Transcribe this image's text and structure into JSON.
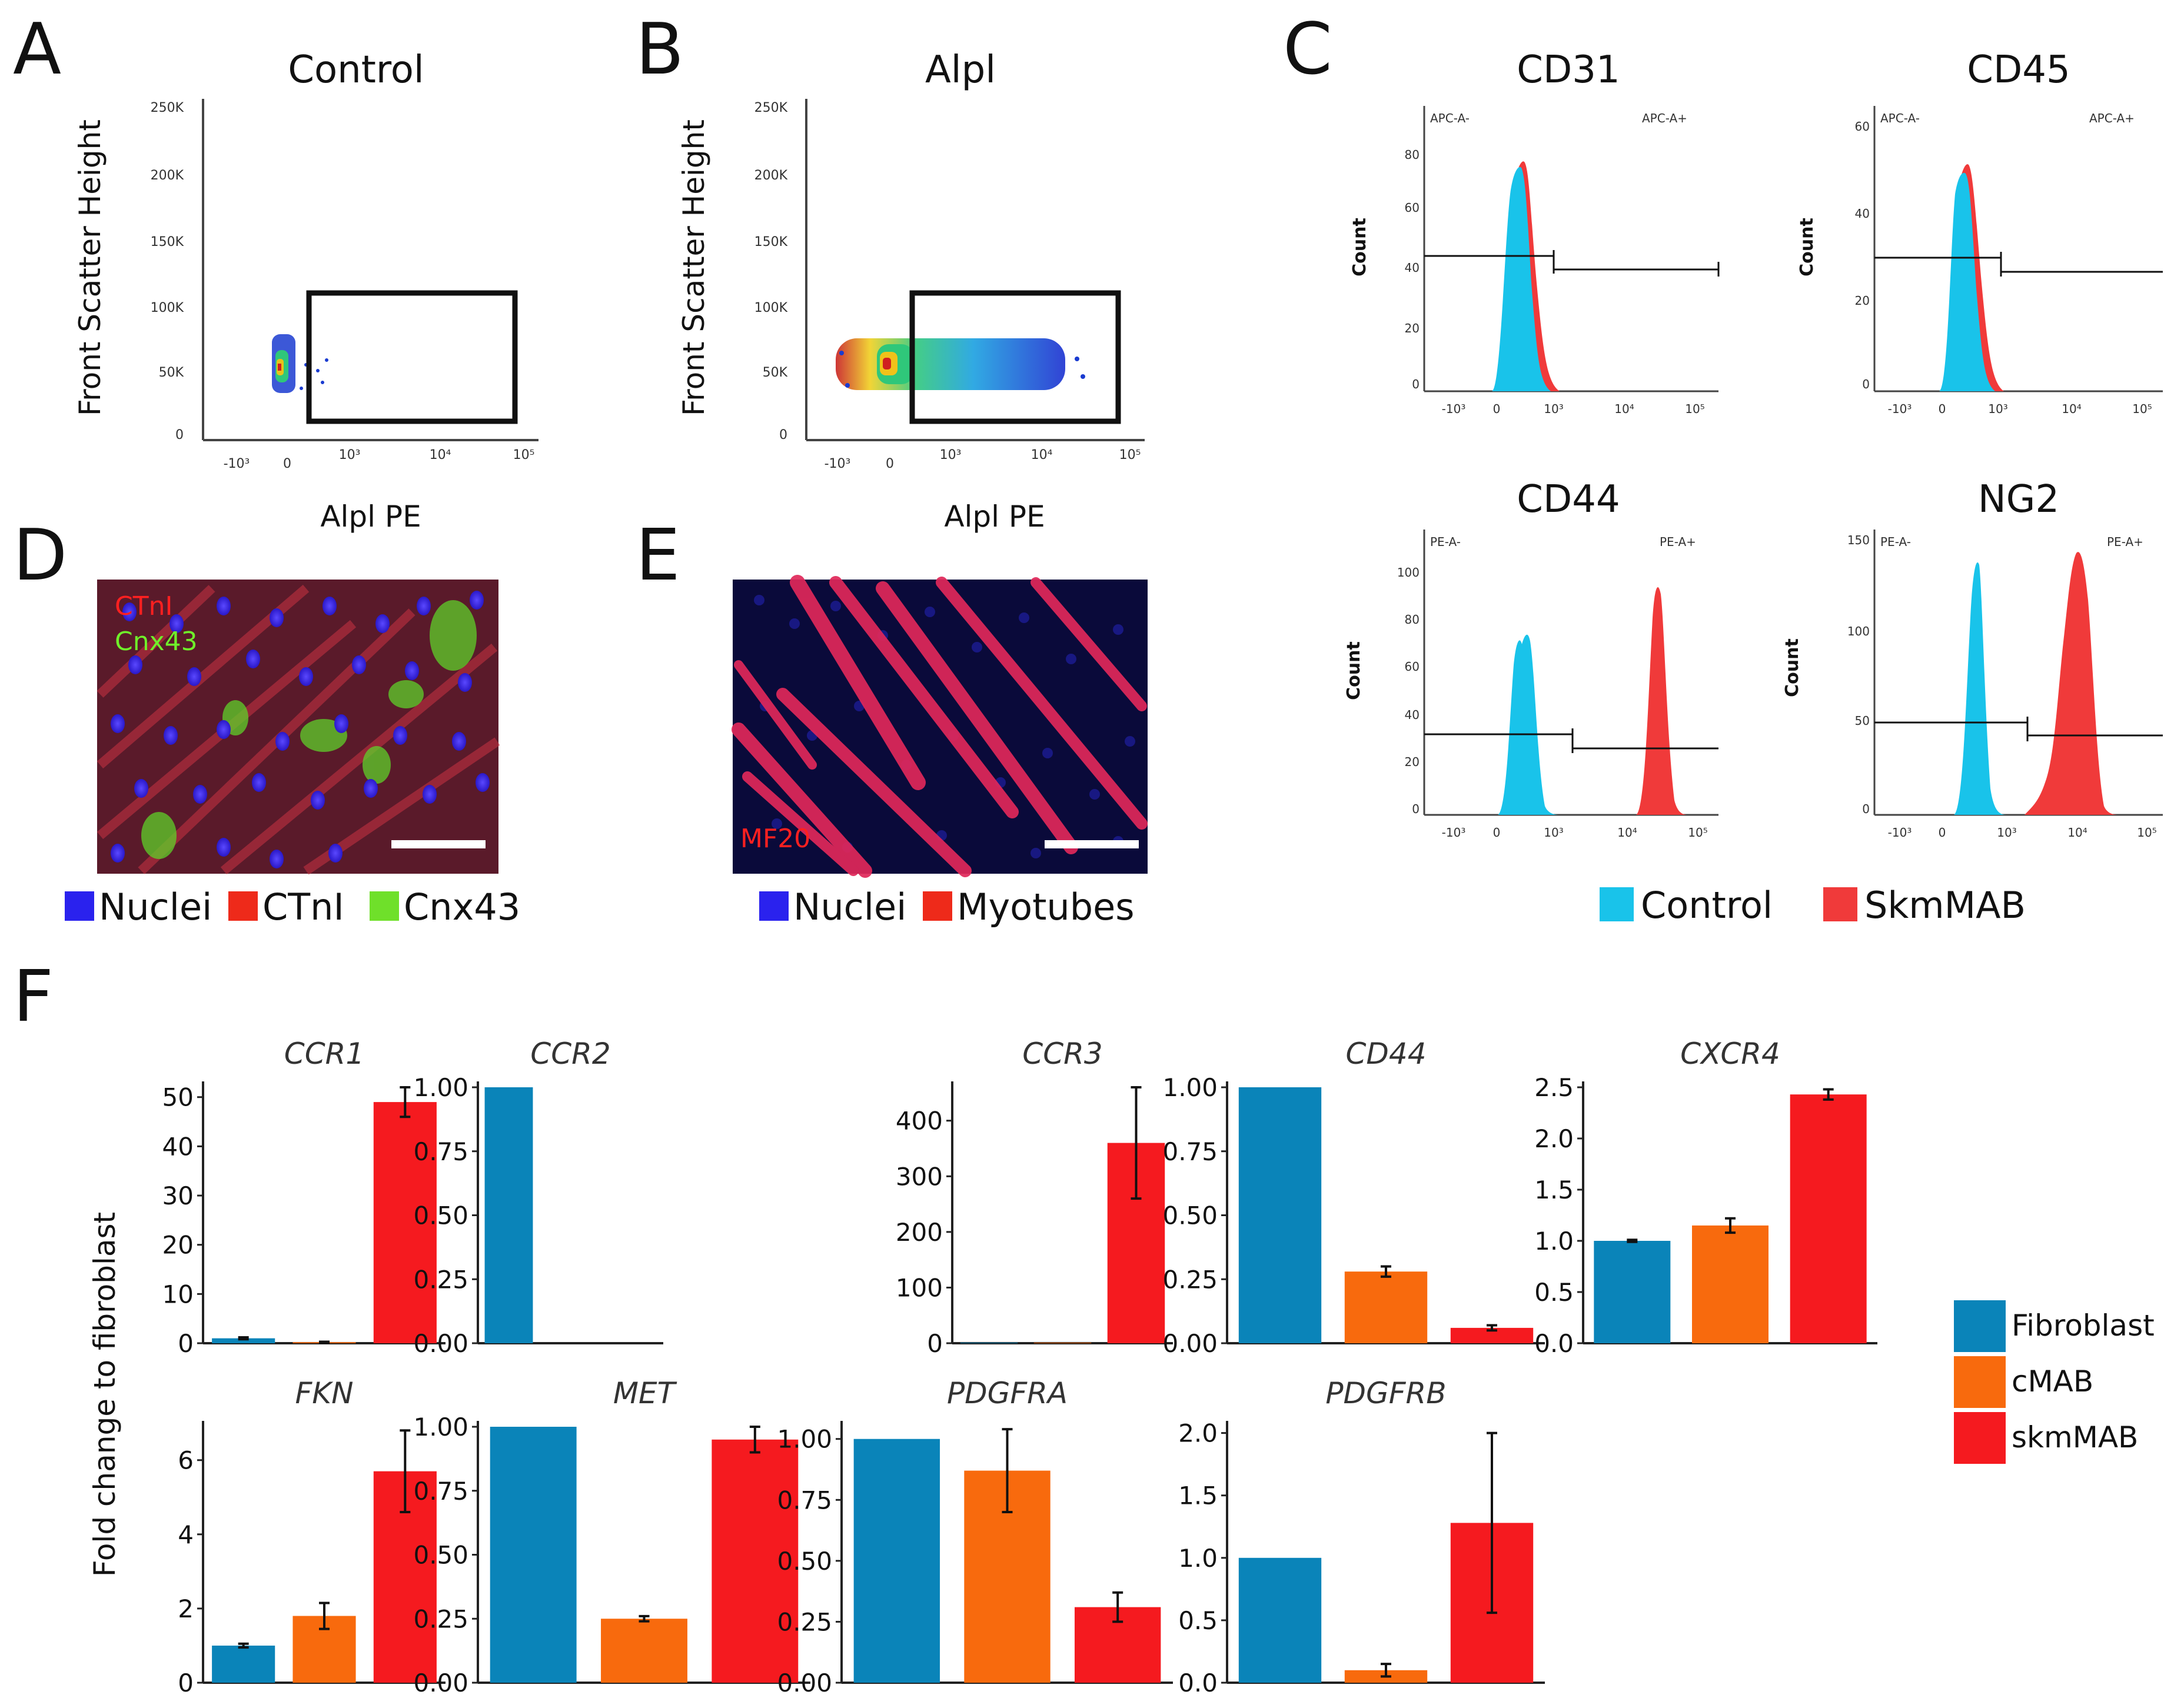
{
  "panels": {
    "a": {
      "label": "A",
      "title": "Control",
      "xlabel": "Alpl PE",
      "ylabel": "Front Scatter Height",
      "yticks": [
        "250K",
        "200K",
        "150K",
        "100K",
        "50K",
        "0"
      ],
      "xticks": [
        "-10³",
        "0",
        "10³",
        "10⁴",
        "10⁵"
      ]
    },
    "b": {
      "label": "B",
      "title": "Alpl",
      "xlabel": "Alpl PE",
      "ylabel": "Front Scatter Height",
      "yticks": [
        "250K",
        "200K",
        "150K",
        "100K",
        "50K",
        "0"
      ],
      "xticks": [
        "-10³",
        "0",
        "10³",
        "10⁴",
        "10⁵"
      ]
    },
    "c": {
      "label": "C",
      "count_label": "Count",
      "xticks": [
        "-10³",
        "0",
        "10³",
        "10⁴",
        "10⁵"
      ],
      "histograms": [
        {
          "title": "CD31",
          "neg": "APC-A-",
          "pos": "APC-A+",
          "yticks": [
            "80",
            "60",
            "40",
            "20",
            "0"
          ]
        },
        {
          "title": "CD45",
          "neg": "APC-A-",
          "pos": "APC-A+",
          "yticks": [
            "60",
            "40",
            "20",
            "0"
          ]
        },
        {
          "title": "CD44",
          "neg": "PE-A-",
          "pos": "PE-A+",
          "yticks": [
            "100",
            "80",
            "60",
            "40",
            "20",
            "0"
          ]
        },
        {
          "title": "NG2",
          "neg": "PE-A-",
          "pos": "PE-A+",
          "yticks": [
            "150",
            "100",
            "50",
            "0"
          ]
        }
      ],
      "legend": [
        {
          "label": "Control",
          "color": "#19c3ea"
        },
        {
          "label": "SkmMAB",
          "color": "#f03a3a"
        }
      ]
    },
    "d": {
      "label": "D",
      "stain1": "CTnI",
      "stain2": "Cnx43",
      "legend": [
        {
          "label": "Nuclei",
          "color": "#2a22ee"
        },
        {
          "label": "CTnI",
          "color": "#ee2a1a"
        },
        {
          "label": "Cnx43",
          "color": "#6fe02a"
        }
      ]
    },
    "e": {
      "label": "E",
      "stain": "MF20",
      "legend": [
        {
          "label": "Nuclei",
          "color": "#2a22ee"
        },
        {
          "label": "Myotubes",
          "color": "#ee2a1a"
        }
      ]
    },
    "f": {
      "label": "F",
      "ylabel": "Fold change to fibroblast",
      "legend": [
        {
          "label": "Fibroblast",
          "color": "#0a84b9"
        },
        {
          "label": "cMAB",
          "color": "#f86a0d"
        },
        {
          "label": "skmMAB",
          "color": "#f51a1f"
        }
      ]
    }
  },
  "chart_data": {
    "type": "bar",
    "title": "",
    "xlabel": "",
    "ylabel": "Fold change to fibroblast",
    "categories": [
      "Fibroblast",
      "cMAB",
      "skmMAB"
    ],
    "subplots": [
      {
        "gene": "CCR1",
        "ylim": [
          0,
          52
        ],
        "yticks": [
          "0",
          "10",
          "20",
          "30",
          "40",
          "50"
        ],
        "values": [
          1,
          0.2,
          49
        ],
        "errors": [
          0.2,
          0.1,
          3
        ]
      },
      {
        "gene": "CCR2",
        "ylim": [
          0,
          1.0
        ],
        "yticks": [
          "0.00",
          "0.25",
          "0.50",
          "0.75",
          "1.00"
        ],
        "values": [
          1.0,
          0,
          0
        ],
        "errors": [
          0,
          0,
          0
        ]
      },
      {
        "gene": "CCR3",
        "ylim": [
          0,
          460
        ],
        "yticks": [
          "0",
          "100",
          "200",
          "300",
          "400"
        ],
        "values": [
          1,
          1,
          360
        ],
        "errors": [
          0,
          0,
          100
        ]
      },
      {
        "gene": "CD44",
        "ylim": [
          0,
          1.0
        ],
        "yticks": [
          "0.00",
          "0.25",
          "0.50",
          "0.75",
          "1.00"
        ],
        "values": [
          1.0,
          0.28,
          0.06
        ],
        "errors": [
          0,
          0.02,
          0.01
        ]
      },
      {
        "gene": "CXCR4",
        "ylim": [
          0,
          2.5
        ],
        "yticks": [
          "0.0",
          "0.5",
          "1.0",
          "1.5",
          "2.0",
          "2.5"
        ],
        "values": [
          1.0,
          1.15,
          2.43
        ],
        "errors": [
          0.01,
          0.07,
          0.05
        ]
      },
      {
        "gene": "FKN",
        "ylim": [
          0,
          6.9
        ],
        "yticks": [
          "0",
          "2",
          "4",
          "6"
        ],
        "values": [
          1.0,
          1.8,
          5.7
        ],
        "errors": [
          0.05,
          0.35,
          1.1
        ]
      },
      {
        "gene": "MET",
        "ylim": [
          0,
          1.0
        ],
        "yticks": [
          "0.00",
          "0.25",
          "0.50",
          "0.75",
          "1.00"
        ],
        "values": [
          1.0,
          0.25,
          0.95
        ],
        "errors": [
          0,
          0.01,
          0.05
        ]
      },
      {
        "gene": "PDGFRA",
        "ylim": [
          0,
          1.05
        ],
        "yticks": [
          "0.00",
          "0.25",
          "0.50",
          "0.75",
          "1.00"
        ],
        "values": [
          1.0,
          0.87,
          0.31
        ],
        "errors": [
          0,
          0.17,
          0.06
        ]
      },
      {
        "gene": "PDGFRB",
        "ylim": [
          0,
          2.05
        ],
        "yticks": [
          "0.0",
          "0.5",
          "1.0",
          "1.5",
          "2.0"
        ],
        "values": [
          1.0,
          0.1,
          1.28
        ],
        "errors": [
          0,
          0.05,
          0.72
        ]
      }
    ]
  }
}
